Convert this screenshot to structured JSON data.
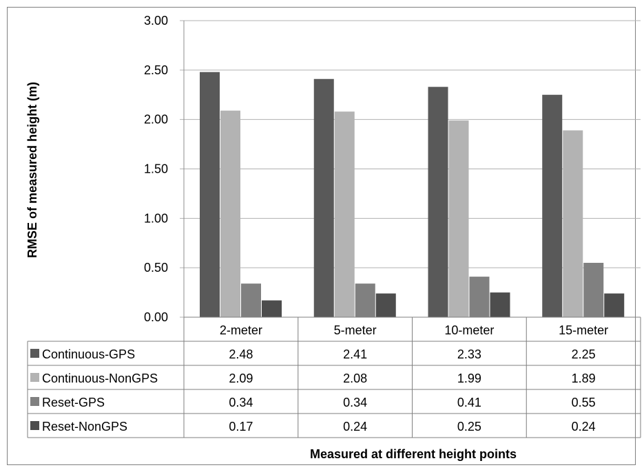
{
  "chart_data": {
    "type": "bar",
    "categories": [
      "2-meter",
      "5-meter",
      "10-meter",
      "15-meter"
    ],
    "series": [
      {
        "name": "Continuous-GPS",
        "color": "#595959",
        "values": [
          2.48,
          2.41,
          2.33,
          2.25
        ],
        "labels": [
          "2.48",
          "2.41",
          "2.33",
          "2.25"
        ]
      },
      {
        "name": "Continuous-NonGPS",
        "color": "#b3b3b3",
        "values": [
          2.09,
          2.08,
          1.99,
          1.89
        ],
        "labels": [
          "2.09",
          "2.08",
          "1.99",
          "1.89"
        ]
      },
      {
        "name": "Reset-GPS",
        "color": "#808080",
        "values": [
          0.34,
          0.34,
          0.41,
          0.55
        ],
        "labels": [
          "0.34",
          "0.34",
          "0.41",
          "0.55"
        ]
      },
      {
        "name": "Reset-NonGPS",
        "color": "#4d4d4d",
        "values": [
          0.17,
          0.24,
          0.25,
          0.24
        ],
        "labels": [
          "0.17",
          "0.24",
          "0.25",
          "0.24"
        ]
      }
    ],
    "ylim": [
      0,
      3
    ],
    "yticks": [
      "0.00",
      "0.50",
      "1.00",
      "1.50",
      "2.00",
      "2.50",
      "3.00"
    ],
    "ylabel": "RMSE of measured height (m)",
    "xlabel": "Measured at different height points",
    "grid": true,
    "legend": "data table"
  }
}
